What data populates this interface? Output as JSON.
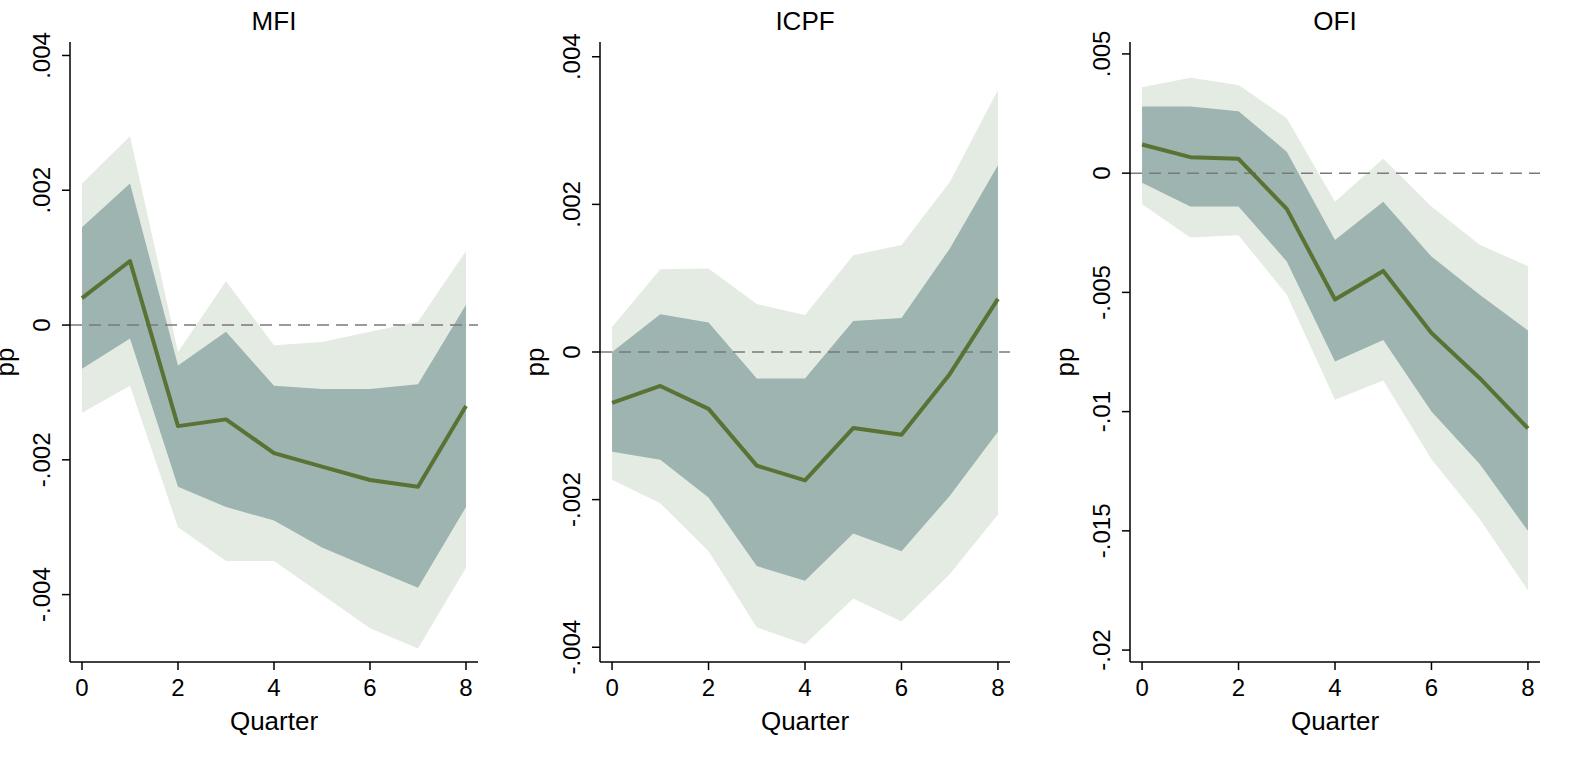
{
  "chart_data": [
    {
      "type": "line",
      "title": "MFI",
      "x_label": "Quarter",
      "y_label": "pp",
      "x": [
        0,
        1,
        2,
        3,
        4,
        5,
        6,
        7,
        8
      ],
      "xlim": [
        -0.25,
        8.25
      ],
      "xticks": [
        0,
        2,
        4,
        6,
        8
      ],
      "ylim": [
        -0.005,
        0.0042
      ],
      "yticks": [
        {
          "value": -0.004,
          "label": "-.004"
        },
        {
          "value": -0.002,
          "label": "-.002"
        },
        0,
        {
          "value": 0.002,
          "label": ".002"
        },
        {
          "value": 0.004,
          "label": ".004"
        }
      ],
      "hline": 0,
      "series": [
        {
          "color": "#5a7234",
          "values": [
            0.0004,
            0.00095,
            -0.0015,
            -0.0014,
            -0.0019,
            -0.0021,
            -0.0023,
            -0.0024,
            -0.0012
          ],
          "inner_upper": [
            0.00145,
            0.0021,
            -0.0006,
            -0.0001,
            -0.0009,
            -0.00095,
            -0.00095,
            -0.00088,
            0.0003
          ],
          "inner_lower": [
            -0.00065,
            -0.0002,
            -0.0024,
            -0.0027,
            -0.0029,
            -0.0033,
            -0.0036,
            -0.0039,
            -0.0027
          ],
          "outer_upper": [
            0.0021,
            0.0028,
            -0.0004,
            0.00065,
            -0.0003,
            -0.00025,
            -0.0001,
            5e-05,
            0.0011
          ],
          "outer_lower": [
            -0.0013,
            -0.0009,
            -0.003,
            -0.0035,
            -0.0035,
            -0.004,
            -0.0045,
            -0.0048,
            -0.0036
          ]
        }
      ]
    },
    {
      "type": "line",
      "title": "ICPF",
      "x_label": "Quarter",
      "y_label": "pp",
      "x": [
        0,
        1,
        2,
        3,
        4,
        5,
        6,
        7,
        8
      ],
      "xlim": [
        -0.25,
        8.25
      ],
      "xticks": [
        0,
        2,
        4,
        6,
        8
      ],
      "ylim": [
        -0.0042,
        0.0042
      ],
      "yticks": [
        {
          "value": -0.004,
          "label": "-.004"
        },
        {
          "value": -0.002,
          "label": "-.002"
        },
        0,
        {
          "value": 0.002,
          "label": ".002"
        },
        {
          "value": 0.004,
          "label": ".004"
        }
      ],
      "hline": 0,
      "series": [
        {
          "color": "#5a7234",
          "values": [
            -0.00069,
            -0.00046,
            -0.00077,
            -0.00154,
            -0.00174,
            -0.00103,
            -0.00112,
            -0.0003,
            0.00072
          ],
          "inner_upper": [
            0.0,
            0.00051,
            0.0004,
            -0.00036,
            -0.00036,
            0.00042,
            0.00046,
            0.0014,
            0.00253
          ],
          "inner_lower": [
            -0.00135,
            -0.00146,
            -0.00197,
            -0.0029,
            -0.0031,
            -0.00246,
            -0.0027,
            -0.00195,
            -0.00108
          ],
          "outer_upper": [
            0.00034,
            0.00112,
            0.00113,
            0.00065,
            0.0005,
            0.00131,
            0.00145,
            0.0023,
            0.00355
          ],
          "outer_lower": [
            -0.00173,
            -0.00205,
            -0.0027,
            -0.00373,
            -0.00396,
            -0.00334,
            -0.00365,
            -0.00301,
            -0.0022
          ]
        }
      ]
    },
    {
      "type": "line",
      "title": "OFI",
      "x_label": "Quarter",
      "y_label": "pp",
      "x": [
        0,
        1,
        2,
        3,
        4,
        5,
        6,
        7,
        8
      ],
      "xlim": [
        -0.25,
        8.25
      ],
      "xticks": [
        0,
        2,
        4,
        6,
        8
      ],
      "ylim": [
        -0.0205,
        0.0055
      ],
      "yticks": [
        {
          "value": -0.02,
          "label": "-.02"
        },
        {
          "value": -0.015,
          "label": "-.015"
        },
        {
          "value": -0.01,
          "label": "-.01"
        },
        {
          "value": -0.005,
          "label": "-.005"
        },
        0,
        {
          "value": 0.005,
          "label": ".005"
        }
      ],
      "hline": 0,
      "series": [
        {
          "color": "#5a7234",
          "values": [
            0.0012,
            0.00067,
            0.0006,
            -0.0015,
            -0.0053,
            -0.0041,
            -0.0067,
            -0.0086,
            -0.0107
          ],
          "inner_upper": [
            0.0028,
            0.0028,
            0.0026,
            0.0009,
            -0.0028,
            -0.0012,
            -0.0035,
            -0.0051,
            -0.0066
          ],
          "inner_lower": [
            -0.0004,
            -0.0014,
            -0.0014,
            -0.0037,
            -0.0079,
            -0.007,
            -0.01,
            -0.0122,
            -0.015
          ],
          "outer_upper": [
            0.0036,
            0.004,
            0.0037,
            0.0023,
            -0.0012,
            0.0006,
            -0.0014,
            -0.003,
            -0.0039
          ],
          "outer_lower": [
            -0.0013,
            -0.0027,
            -0.0026,
            -0.0051,
            -0.0095,
            -0.0087,
            -0.012,
            -0.0145,
            -0.0175
          ]
        }
      ]
    }
  ]
}
